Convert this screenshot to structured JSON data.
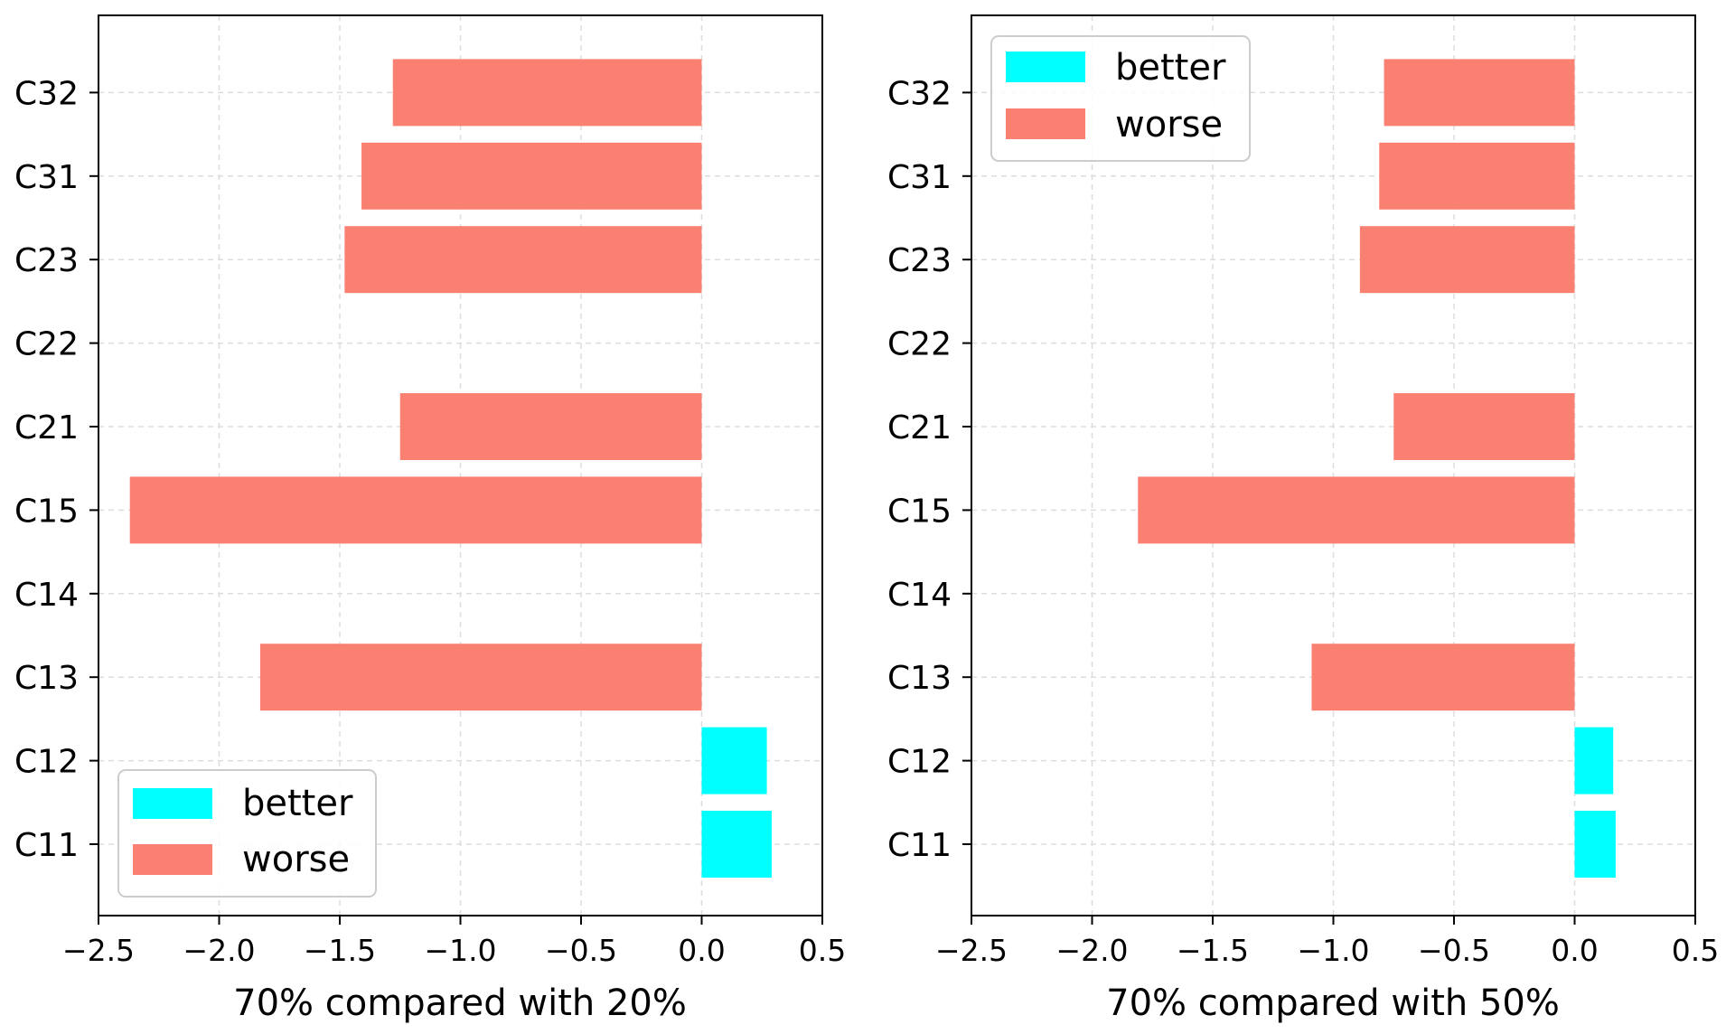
{
  "chart_data": [
    {
      "type": "bar",
      "orientation": "horizontal",
      "categories": [
        "C11",
        "C12",
        "C13",
        "C14",
        "C15",
        "C21",
        "C22",
        "C23",
        "C31",
        "C32"
      ],
      "values": [
        0.29,
        0.27,
        -1.83,
        0.0,
        -2.37,
        -1.25,
        0.0,
        -1.48,
        -1.41,
        -1.28
      ],
      "xlabel": "70% compared with 20%",
      "ylabel": "",
      "xlim": [
        -2.5,
        0.5
      ],
      "xticks": [
        "−2.5",
        "−2.0",
        "−1.5",
        "−1.0",
        "−0.5",
        "0.0",
        "0.5"
      ],
      "grid": true,
      "legend": {
        "placement": "lower-left",
        "entries": [
          {
            "label": "better",
            "color": "#00ffff"
          },
          {
            "label": "worse",
            "color": "#fa8072"
          }
        ]
      }
    },
    {
      "type": "bar",
      "orientation": "horizontal",
      "categories": [
        "C11",
        "C12",
        "C13",
        "C14",
        "C15",
        "C21",
        "C22",
        "C23",
        "C31",
        "C32"
      ],
      "values": [
        0.17,
        0.16,
        -1.09,
        0.0,
        -1.81,
        -0.75,
        0.0,
        -0.89,
        -0.81,
        -0.79
      ],
      "xlabel": "70% compared with 50%",
      "ylabel": "",
      "xlim": [
        -2.5,
        0.5
      ],
      "xticks": [
        "−2.5",
        "−2.0",
        "−1.5",
        "−1.0",
        "−0.5",
        "0.0",
        "0.5"
      ],
      "grid": true,
      "legend": {
        "placement": "upper-left",
        "entries": [
          {
            "label": "better",
            "color": "#00ffff"
          },
          {
            "label": "worse",
            "color": "#fa8072"
          }
        ]
      }
    }
  ],
  "colors": {
    "better": "#00ffff",
    "worse": "#fa8072",
    "grid": "#dddddd",
    "axis": "#000000"
  }
}
